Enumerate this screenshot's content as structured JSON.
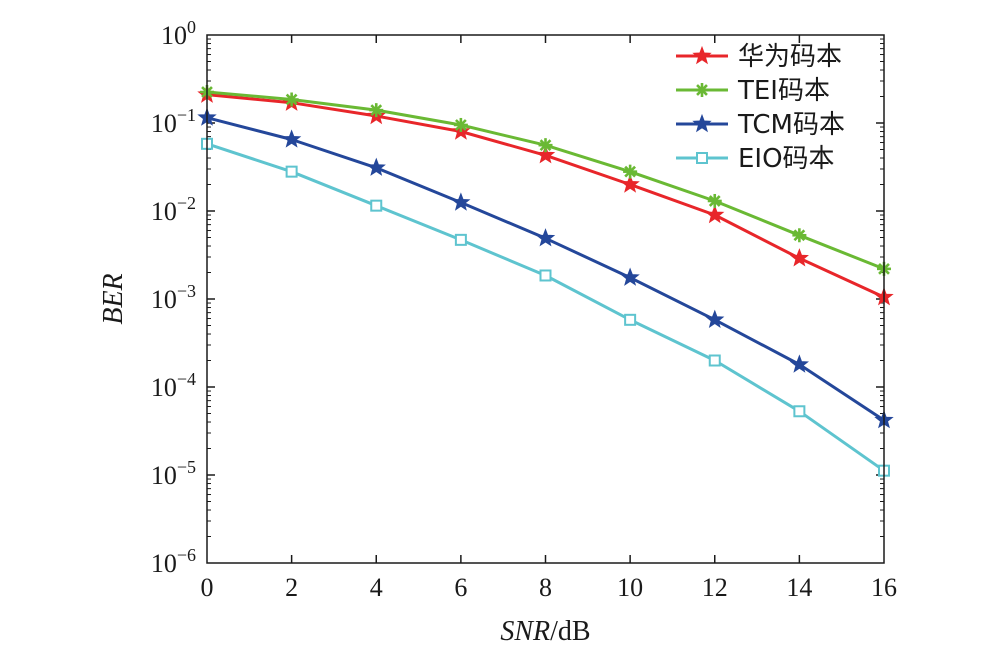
{
  "chart_data": {
    "type": "line",
    "xlabel": {
      "italic": "SNR",
      "unit": "/dB"
    },
    "ylabel": "BER",
    "xlim": [
      0,
      16
    ],
    "ylim": [
      1e-06,
      1
    ],
    "yscale": "log",
    "grid": false,
    "legend_placement": "top-right",
    "x_ticks": [
      "0",
      "2",
      "4",
      "6",
      "8",
      "10",
      "12",
      "14",
      "16"
    ],
    "y_ticks": [
      {
        "value": 1,
        "base": "10",
        "exp": "0"
      },
      {
        "value": 0.1,
        "base": "10",
        "exp": "−1"
      },
      {
        "value": 0.01,
        "base": "10",
        "exp": "−2"
      },
      {
        "value": 0.001,
        "base": "10",
        "exp": "−3"
      },
      {
        "value": 0.0001,
        "base": "10",
        "exp": "−4"
      },
      {
        "value": 1e-05,
        "base": "10",
        "exp": "−5"
      },
      {
        "value": 1e-06,
        "base": "10",
        "exp": "−6"
      }
    ],
    "x": [
      0,
      2,
      4,
      6,
      8,
      10,
      12,
      14,
      16
    ],
    "series": [
      {
        "name": "华为码本",
        "color": "#e8262a",
        "marker": "star",
        "values": [
          0.21,
          0.17,
          0.12,
          0.08,
          0.043,
          0.02,
          0.009,
          0.0029,
          0.00105
        ]
      },
      {
        "name": "TEI码本",
        "color": "#6ab934",
        "marker": "asterisk",
        "values": [
          0.225,
          0.185,
          0.14,
          0.095,
          0.056,
          0.028,
          0.013,
          0.0053,
          0.0022
        ]
      },
      {
        "name": "TCM码本",
        "color": "#24479a",
        "marker": "star",
        "values": [
          0.115,
          0.065,
          0.031,
          0.0125,
          0.0049,
          0.00175,
          0.00058,
          0.00018,
          4.2e-05
        ]
      },
      {
        "name": "EIO码本",
        "color": "#5ec4cf",
        "marker": "square",
        "values": [
          0.058,
          0.028,
          0.0115,
          0.0047,
          0.00185,
          0.00058,
          0.0002,
          5.3e-05,
          1.12e-05
        ]
      }
    ]
  }
}
